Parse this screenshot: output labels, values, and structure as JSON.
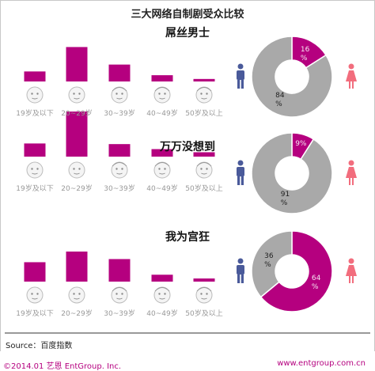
{
  "chart_data": {
    "title": "三大网络自制剧受众比较",
    "type": "bar",
    "categories": [
      "19岁及以下",
      "20~29岁",
      "30~39岁",
      "40~49岁",
      "50岁及以上"
    ],
    "panels": [
      {
        "title": "屌丝男士",
        "type": "bar",
        "categories": [
          "19岁及以下",
          "20~29岁",
          "30~39岁",
          "40~49岁",
          "50岁及以上"
        ],
        "values": [
          16,
          55,
          27,
          10,
          4
        ],
        "gender": {
          "type": "pie",
          "male": 84,
          "female": 16,
          "male_label": [
            "84",
            "%"
          ],
          "female_label": [
            "16",
            "%"
          ]
        }
      },
      {
        "title": "万万没想到",
        "type": "bar",
        "categories": [
          "19岁及以下",
          "20~29岁",
          "30~39岁",
          "40~49岁",
          "50岁及以上"
        ],
        "values": [
          21,
          72,
          20,
          12,
          7
        ],
        "gender": {
          "type": "pie",
          "male": 91,
          "female": 9,
          "male_label": [
            "91",
            "%"
          ],
          "female_label": [
            "9%"
          ]
        }
      },
      {
        "title": "我为宫狂",
        "type": "bar",
        "categories": [
          "19岁及以下",
          "20~29岁",
          "30~39岁",
          "40~49岁",
          "50岁及以上"
        ],
        "values": [
          31,
          48,
          36,
          11,
          5
        ],
        "gender": {
          "type": "pie",
          "male": 36,
          "female": 64,
          "male_label": [
            "36",
            "%"
          ],
          "female_label": [
            "64",
            "%"
          ]
        }
      }
    ]
  },
  "source": "Source：百度指数",
  "footer": {
    "left": "©2014.01 艺恩 EntGroup. Inc.",
    "right": "www.entgroup.com.cn"
  },
  "colors": {
    "bar": "#b5007f",
    "female": "#b5007f",
    "male_slice": "#a9a9a9",
    "male_icon": "#4a5a9a",
    "female_icon": "#f26d7d"
  },
  "icons": [
    "face-icon",
    "male-icon",
    "female-icon"
  ]
}
